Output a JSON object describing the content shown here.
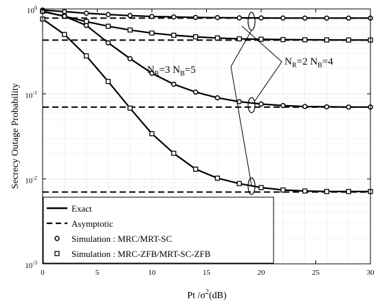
{
  "chart_data": {
    "type": "line",
    "xlabel": "Pt /σ²(dB)",
    "xlabel_main": "Pt /σ",
    "xlabel_sup": "2",
    "xlabel_tail": "(dB)",
    "ylabel": "Secrecy Outage Probability",
    "xlim": [
      0,
      30
    ],
    "ylim": [
      0.001,
      1
    ],
    "yscale": "log",
    "grid": true,
    "x_ticks": [
      0,
      5,
      10,
      15,
      20,
      25,
      30
    ],
    "x_tick_labels": [
      "0",
      "5",
      "10",
      "15",
      "20",
      "25",
      "30"
    ],
    "y_ticks": [
      1,
      0.1,
      0.01,
      0.001
    ],
    "y_tick_base": [
      "10",
      "10",
      "10",
      "10"
    ],
    "y_tick_exp": [
      "0",
      "-1",
      "-2",
      "-3"
    ],
    "legend_position": "bottom-left",
    "legend": [
      {
        "label": "Exact",
        "style": "solid"
      },
      {
        "label": "Asymptotic",
        "style": "dashed"
      },
      {
        "label": "Simulation  : MRC/MRT-SC",
        "style": "circle"
      },
      {
        "label": "Simulation  : MRC-ZFB/MRT-SC-ZFB",
        "style": "square"
      }
    ],
    "series": [
      {
        "group": "NR=2 NB=4",
        "kind": "exact",
        "marker": "circle",
        "x": [
          0,
          2,
          4,
          6,
          8,
          10,
          12,
          14,
          16,
          18,
          20,
          22,
          24,
          26,
          28,
          30
        ],
        "y": [
          0.97,
          0.93,
          0.89,
          0.86,
          0.835,
          0.815,
          0.805,
          0.795,
          0.79,
          0.785,
          0.783,
          0.781,
          0.78,
          0.78,
          0.78,
          0.78
        ]
      },
      {
        "group": "NR=2 NB=4",
        "kind": "exact",
        "marker": "square",
        "x": [
          0,
          2,
          4,
          6,
          8,
          10,
          12,
          14,
          16,
          18,
          20,
          22,
          24,
          26,
          28,
          30
        ],
        "y": [
          0.94,
          0.82,
          0.71,
          0.625,
          0.565,
          0.52,
          0.49,
          0.47,
          0.455,
          0.445,
          0.44,
          0.436,
          0.434,
          0.432,
          0.431,
          0.43
        ]
      },
      {
        "group": "NR=3 NB=5",
        "kind": "exact",
        "marker": "circle",
        "x": [
          0,
          2,
          4,
          6,
          8,
          10,
          12,
          14,
          16,
          18,
          20,
          22,
          24,
          26,
          28,
          30
        ],
        "y": [
          0.93,
          0.82,
          0.64,
          0.4,
          0.26,
          0.175,
          0.13,
          0.105,
          0.09,
          0.081,
          0.076,
          0.073,
          0.071,
          0.0705,
          0.07,
          0.07
        ]
      },
      {
        "group": "NR=3 NB=5",
        "kind": "exact",
        "marker": "square",
        "x": [
          0,
          2,
          4,
          6,
          8,
          10,
          12,
          14,
          16,
          18,
          20,
          22,
          24,
          26,
          28,
          30
        ],
        "y": [
          0.76,
          0.5,
          0.28,
          0.14,
          0.068,
          0.034,
          0.02,
          0.013,
          0.0102,
          0.0088,
          0.0079,
          0.0074,
          0.0072,
          0.0071,
          0.0071,
          0.0071
        ]
      }
    ],
    "asymptotes": [
      {
        "y": 0.78,
        "x": [
          0,
          30
        ]
      },
      {
        "y": 0.43,
        "x": [
          0,
          30
        ]
      },
      {
        "y": 0.07,
        "x": [
          0,
          30
        ]
      },
      {
        "y": 0.007,
        "x": [
          0,
          30
        ]
      }
    ],
    "annotations": [
      {
        "text_main": "N",
        "sub": "R",
        "text_mid": "=3  N",
        "sub2": "B",
        "text_tail": "=5"
      },
      {
        "text_main": "N",
        "sub": "R",
        "text_mid": "=2  N",
        "sub2": "B",
        "text_tail": "=4"
      }
    ]
  }
}
